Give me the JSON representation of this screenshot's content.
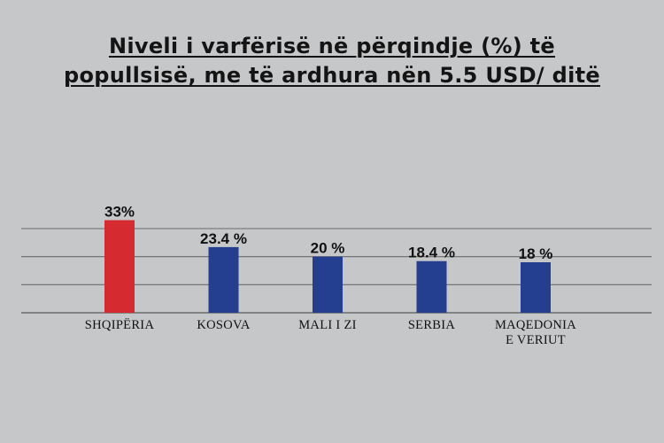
{
  "title": {
    "line1": "Niveli i varfërisë në përqindje (%) të",
    "line2": "popullsisë, me të ardhura nën 5.5 USD/ ditë"
  },
  "chart_data": {
    "type": "bar",
    "title": "Niveli i varfërisë në përqindje (%) të popullsisë, me të ardhura nën 5.5 USD/ ditë",
    "categories": [
      "SHQIPËRIA",
      "KOSOVA",
      "MALI I ZI",
      "SERBIA",
      "MAQEDONIA E VERIUT"
    ],
    "category_lines": [
      [
        "SHQIPËRIA"
      ],
      [
        "KOSOVA"
      ],
      [
        "MALI I ZI"
      ],
      [
        "SERBIA"
      ],
      [
        "MAQEDONIA",
        "E VERIUT"
      ]
    ],
    "values": [
      33,
      23.4,
      20,
      18.4,
      18
    ],
    "data_labels": [
      "33%",
      "23.4 %",
      "20 %",
      "18.4 %",
      "18 %"
    ],
    "colors": [
      "#d42a30",
      "#253f90",
      "#253f90",
      "#253f90",
      "#253f90"
    ],
    "grid_color": "#6b6b6b",
    "ylim": [
      0,
      30
    ],
    "grid": true,
    "legend": "none",
    "xlabel": "",
    "ylabel": ""
  }
}
